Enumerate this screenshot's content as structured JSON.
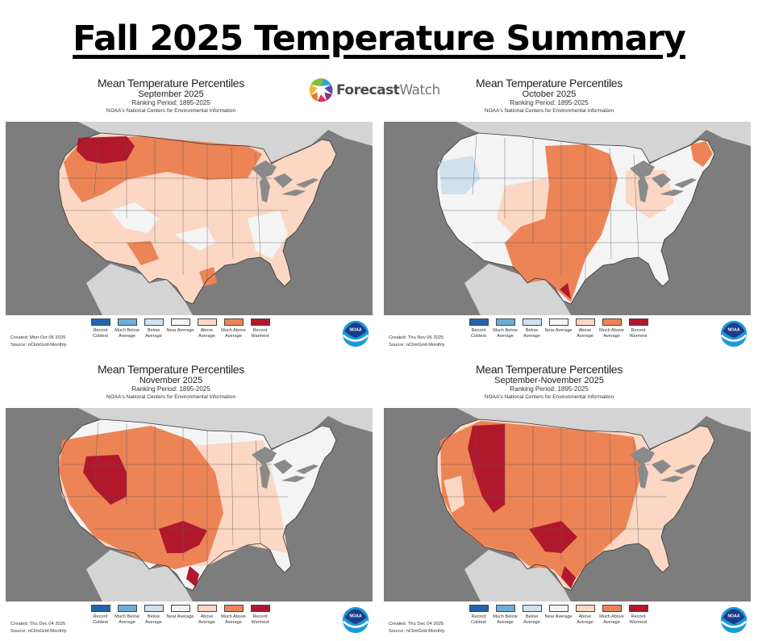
{
  "title": "Fall 2025 Temperature Summary",
  "logo": {
    "icon": "forecastwatch-pinwheel-icon",
    "brand_bold": "Forecast",
    "brand_light": "Watch"
  },
  "legend": [
    {
      "label": "Record Coldest",
      "color": "#2166ac"
    },
    {
      "label": "Much Below Average",
      "color": "#6baed6"
    },
    {
      "label": "Below Average",
      "color": "#cfe0ee"
    },
    {
      "label": "Near Average",
      "color": "#f4f4f4"
    },
    {
      "label": "Above Average",
      "color": "#fbd7c4"
    },
    {
      "label": "Much Above Average",
      "color": "#ec8456"
    },
    {
      "label": "Record Warmest",
      "color": "#b2182b"
    }
  ],
  "colors": {
    "ocean": "#7d7d7d",
    "foreign_land": "#d4d4d4",
    "lakes": "#8a8a8a"
  },
  "panels": [
    {
      "heading": "Mean Temperature Percentiles",
      "period": "September 2025",
      "ranking": "Ranking Period: 1895-2025",
      "source_org": "NOAA's National Centers for Environmental Information",
      "created": "Created: Mon Oct 06 2025",
      "source": "Source: nClimGrid-Monthly",
      "dominant": "Above Average",
      "highlight": "Record Warmest in Pacific Northwest"
    },
    {
      "heading": "Mean Temperature Percentiles",
      "period": "October 2025",
      "ranking": "Ranking Period: 1895-2025",
      "source_org": "NOAA's National Centers for Environmental Information",
      "created": "Created: Thu Nov 06 2025",
      "source": "Source: nClimGrid-Monthly",
      "dominant": "Much Above Average",
      "highlight": "Much Above Average across Plains and Texas"
    },
    {
      "heading": "Mean Temperature Percentiles",
      "period": "November 2025",
      "ranking": "Ranking Period: 1895-2025",
      "source_org": "NOAA's National Centers for Environmental Information",
      "created": "Created: Thu Dec 04 2025",
      "source": "Source: nClimGrid-Monthly",
      "dominant": "Much Above Average",
      "highlight": "Record Warmest in Great Basin and Texas"
    },
    {
      "heading": "Mean Temperature Percentiles",
      "period": "September-November 2025",
      "ranking": "Ranking Period: 1895-2025",
      "source_org": "NOAA's National Centers for Environmental Information",
      "created": "Created: Thu Dec 04 2025",
      "source": "Source: nClimGrid-Monthly",
      "dominant": "Much Above Average",
      "highlight": "Record Warmest in Rockies and Texas"
    }
  ],
  "noaa_badge": "NOAA"
}
